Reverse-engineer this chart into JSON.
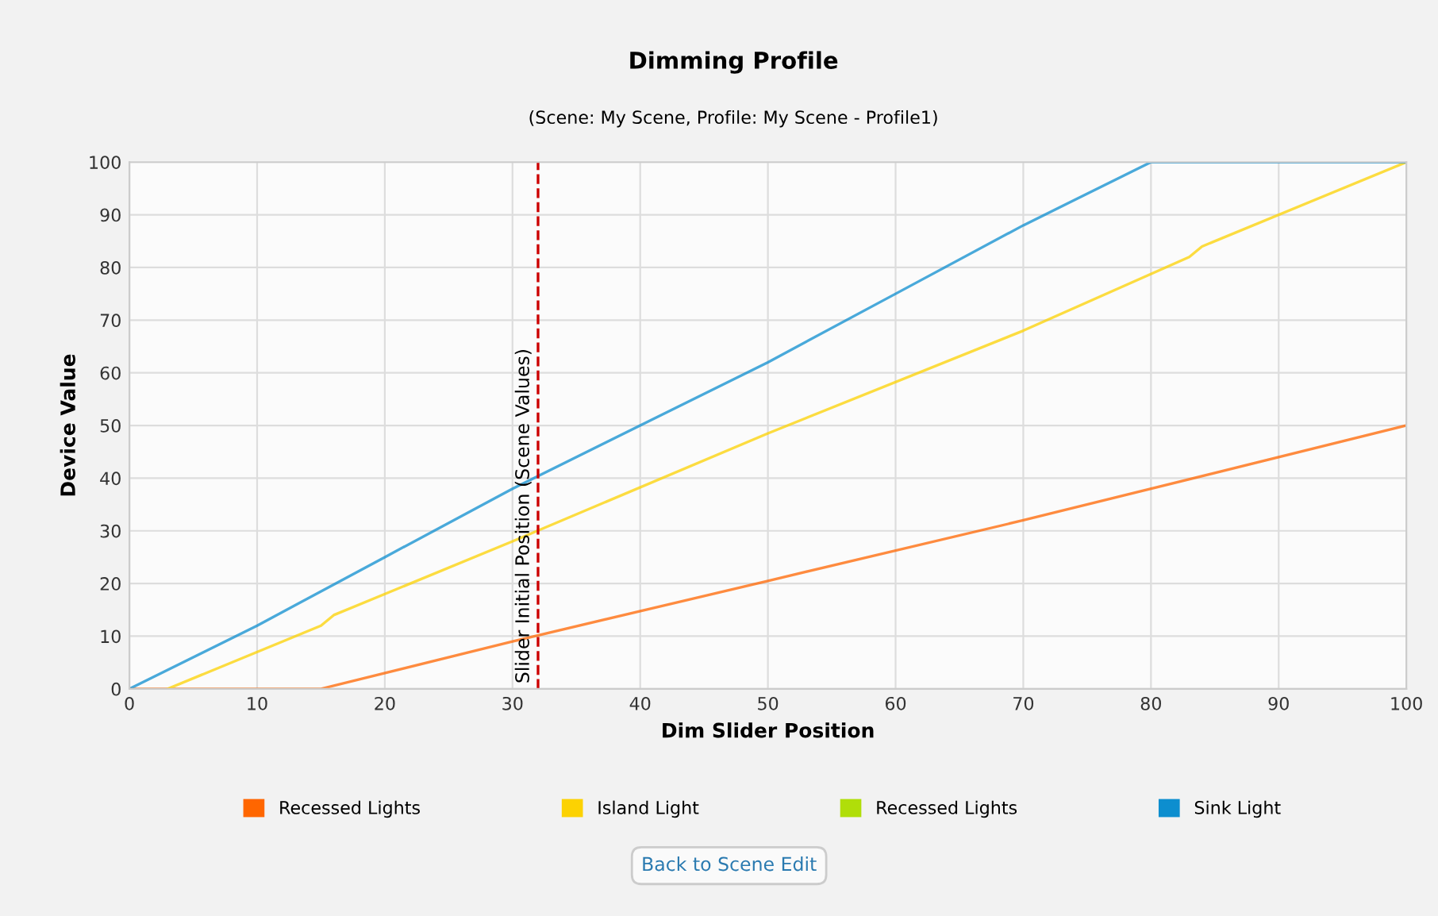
{
  "chart_data": {
    "type": "line",
    "title": "Dimming Profile",
    "subtitle": "(Scene: My Scene, Profile: My Scene - Profile1)",
    "xlabel": "Dim Slider Position",
    "ylabel": "Device Value",
    "series": [
      {
        "name": "Recessed Lights",
        "color": "#ff6600",
        "x": [
          0,
          15,
          30,
          50,
          70,
          100
        ],
        "values": [
          0,
          0,
          9,
          20.5,
          32,
          50
        ]
      },
      {
        "name": "Island Light",
        "color": "#fcd202",
        "x": [
          3,
          15,
          16,
          30,
          50,
          70,
          83,
          84,
          100
        ],
        "values": [
          0,
          12,
          14,
          28,
          48.5,
          68,
          82,
          84,
          100
        ]
      },
      {
        "name": "Recessed Lights",
        "color": "#b0de09"
      },
      {
        "name": "Sink Light",
        "color": "#0d8ecf",
        "x": [
          0,
          10,
          20,
          30,
          40,
          50,
          60,
          70,
          80,
          100
        ],
        "values": [
          0,
          12,
          25,
          38,
          50,
          62,
          75,
          88,
          100,
          100
        ]
      }
    ],
    "xlim": [
      0,
      100
    ],
    "xticks": [
      0,
      10,
      20,
      30,
      40,
      50,
      60,
      70,
      80,
      90,
      100
    ],
    "ylim": [
      0,
      100
    ],
    "yticks": [
      0,
      10,
      20,
      30,
      40,
      50,
      60,
      70,
      80,
      90,
      100
    ],
    "ref_lines": [
      {
        "axis": "x",
        "value": 32,
        "label": "Slider Initial Position (Scene Values)",
        "color": "#cc0000",
        "line_style": "dashed"
      }
    ],
    "annotations": [
      "Back to Scene Edit"
    ],
    "grid": true,
    "legend": "bottom",
    "marker": "none",
    "line_style": "solid"
  }
}
